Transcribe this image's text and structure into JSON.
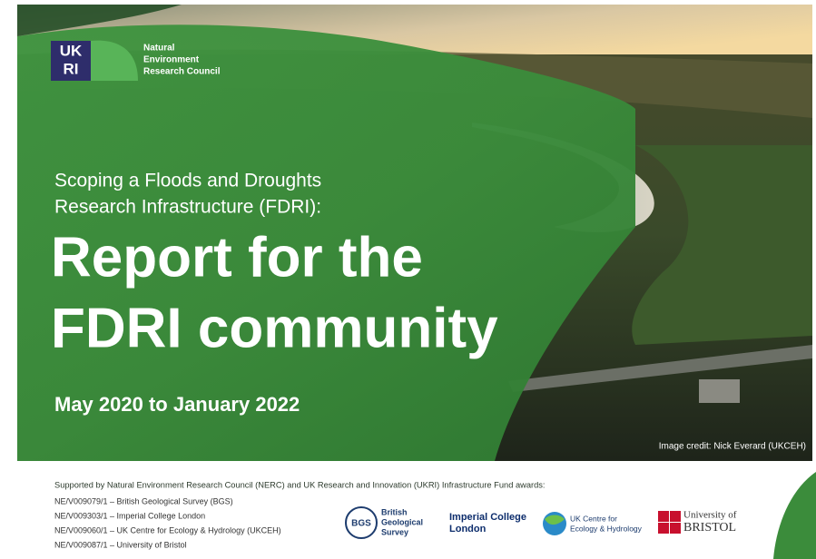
{
  "logo": {
    "mark_lines": [
      "UK",
      "RI"
    ],
    "council_lines": [
      "Natural",
      "Environment",
      "Research Council"
    ]
  },
  "cover": {
    "subtitle_lines": [
      "Scoping a Floods and Droughts",
      "Research Infrastructure (FDRI):"
    ],
    "title_lines": [
      "Report for the",
      "FDRI community"
    ],
    "dates": "May 2020 to January 2022",
    "image_credit": "Image credit: Nick Everard (UKCEH)"
  },
  "footer": {
    "supported": "Supported by Natural Environment Research Council (NERC) and UK Research and Innovation (UKRI) Infrastructure Fund awards:",
    "awards": [
      "NE/V009079/1 – British Geological Survey (BGS)",
      "NE/V009303/1 – Imperial College London",
      "NE/V009060/1 – UK Centre for Ecology & Hydrology (UKCEH)",
      "NE/V009087/1 – University of Bristol"
    ],
    "partners": [
      {
        "badge": "BGS",
        "lines": [
          "British",
          "Geological",
          "Survey"
        ]
      },
      {
        "lines": [
          "Imperial College",
          "London"
        ]
      },
      {
        "lines": [
          "UK Centre for",
          "Ecology & Hydrology"
        ]
      },
      {
        "lines": [
          "University of",
          "BRISTOL"
        ]
      }
    ]
  }
}
